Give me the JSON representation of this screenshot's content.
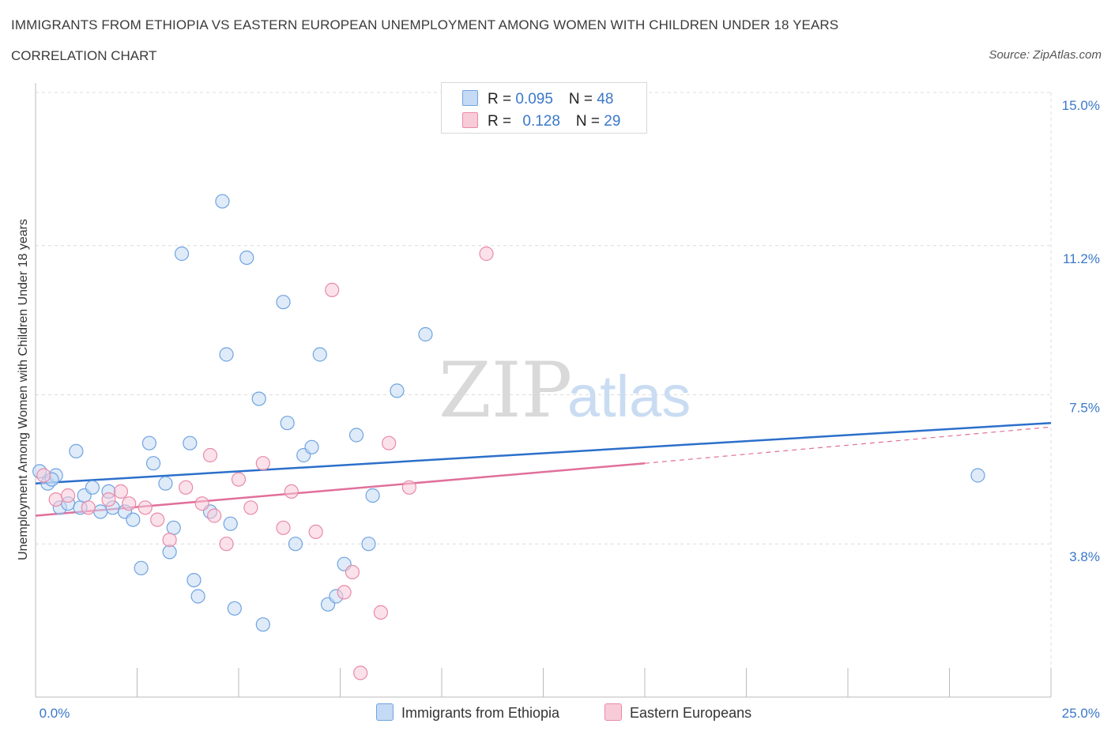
{
  "header": {
    "title": "IMMIGRANTS FROM ETHIOPIA VS EASTERN EUROPEAN UNEMPLOYMENT AMONG WOMEN WITH CHILDREN UNDER 18 YEARS",
    "subtitle": "CORRELATION CHART",
    "source": "Source: ZipAtlas.com"
  },
  "watermark": {
    "zip": "ZIP",
    "atlas": "atlas"
  },
  "legend_stats": [
    {
      "r_label": "R = ",
      "r_value": "0.095",
      "n_label": "N = ",
      "n_value": "48"
    },
    {
      "r_label": "R = ",
      "r_value": "0.128",
      "n_label": "N = ",
      "n_value": "29"
    }
  ],
  "chart_data": {
    "type": "scatter",
    "xlabel": "",
    "ylabel": "Unemployment Among Women with Children Under 18 years",
    "xlim": [
      0,
      25
    ],
    "ylim": [
      0,
      15
    ],
    "x_tick_labels": [
      "0.0%",
      "25.0%"
    ],
    "y_ticks": [
      3.8,
      7.5,
      11.2,
      15.0
    ],
    "y_tick_labels": [
      "3.8%",
      "7.5%",
      "11.2%",
      "15.0%"
    ],
    "grid": true,
    "legend_position": "bottom",
    "series": [
      {
        "name": "Immigrants from Ethiopia",
        "color": "#6fa3e0",
        "fill": "#c5daf4",
        "trend": {
          "x": [
            0,
            25
          ],
          "y": [
            5.3,
            6.8
          ]
        },
        "points": [
          [
            0.1,
            5.6
          ],
          [
            0.3,
            5.3
          ],
          [
            0.5,
            5.5
          ],
          [
            0.6,
            4.7
          ],
          [
            0.8,
            4.8
          ],
          [
            1.0,
            6.1
          ],
          [
            1.1,
            4.7
          ],
          [
            1.2,
            5.0
          ],
          [
            1.4,
            5.2
          ],
          [
            1.6,
            4.6
          ],
          [
            1.8,
            5.1
          ],
          [
            1.9,
            4.7
          ],
          [
            2.2,
            4.6
          ],
          [
            2.4,
            4.4
          ],
          [
            2.6,
            3.2
          ],
          [
            2.8,
            6.3
          ],
          [
            2.9,
            5.8
          ],
          [
            3.2,
            5.3
          ],
          [
            3.3,
            3.6
          ],
          [
            3.4,
            4.2
          ],
          [
            3.6,
            11.0
          ],
          [
            3.8,
            6.3
          ],
          [
            3.9,
            2.9
          ],
          [
            4.0,
            2.5
          ],
          [
            4.3,
            4.6
          ],
          [
            4.6,
            12.3
          ],
          [
            4.7,
            8.5
          ],
          [
            4.8,
            4.3
          ],
          [
            4.9,
            2.2
          ],
          [
            5.2,
            10.9
          ],
          [
            5.5,
            7.4
          ],
          [
            5.6,
            1.8
          ],
          [
            6.1,
            9.8
          ],
          [
            6.2,
            6.8
          ],
          [
            6.4,
            3.8
          ],
          [
            6.6,
            6.0
          ],
          [
            6.8,
            6.2
          ],
          [
            7.0,
            8.5
          ],
          [
            7.2,
            2.3
          ],
          [
            7.4,
            2.5
          ],
          [
            7.6,
            3.3
          ],
          [
            7.9,
            6.5
          ],
          [
            8.2,
            3.8
          ],
          [
            8.3,
            5.0
          ],
          [
            8.9,
            7.6
          ],
          [
            9.6,
            9.0
          ],
          [
            23.2,
            5.5
          ],
          [
            0.4,
            5.4
          ]
        ]
      },
      {
        "name": "Eastern Europeans",
        "color": "#e98aa8",
        "fill": "#f8cbd9",
        "trend": {
          "x": [
            0,
            15
          ],
          "y": [
            4.5,
            5.8
          ]
        },
        "trend_extension": {
          "x": [
            15,
            25
          ],
          "y": [
            5.8,
            6.7
          ]
        },
        "points": [
          [
            0.2,
            5.5
          ],
          [
            0.5,
            4.9
          ],
          [
            0.8,
            5.0
          ],
          [
            1.3,
            4.7
          ],
          [
            1.8,
            4.9
          ],
          [
            2.1,
            5.1
          ],
          [
            2.3,
            4.8
          ],
          [
            2.7,
            4.7
          ],
          [
            3.0,
            4.4
          ],
          [
            3.3,
            3.9
          ],
          [
            3.7,
            5.2
          ],
          [
            4.1,
            4.8
          ],
          [
            4.3,
            6.0
          ],
          [
            4.7,
            3.8
          ],
          [
            5.0,
            5.4
          ],
          [
            5.3,
            4.7
          ],
          [
            5.6,
            5.8
          ],
          [
            6.1,
            4.2
          ],
          [
            6.3,
            5.1
          ],
          [
            6.9,
            4.1
          ],
          [
            7.3,
            10.1
          ],
          [
            7.6,
            2.6
          ],
          [
            7.8,
            3.1
          ],
          [
            8.0,
            0.6
          ],
          [
            8.5,
            2.1
          ],
          [
            8.7,
            6.3
          ],
          [
            9.2,
            5.2
          ],
          [
            11.1,
            11.0
          ],
          [
            4.4,
            4.5
          ]
        ]
      }
    ]
  },
  "bottom_legend": [
    {
      "label": "Immigrants from Ethiopia",
      "color": "#c5daf4",
      "border": "#6fa3e0"
    },
    {
      "label": "Eastern Europeans",
      "color": "#f8cbd9",
      "border": "#e98aa8"
    }
  ]
}
